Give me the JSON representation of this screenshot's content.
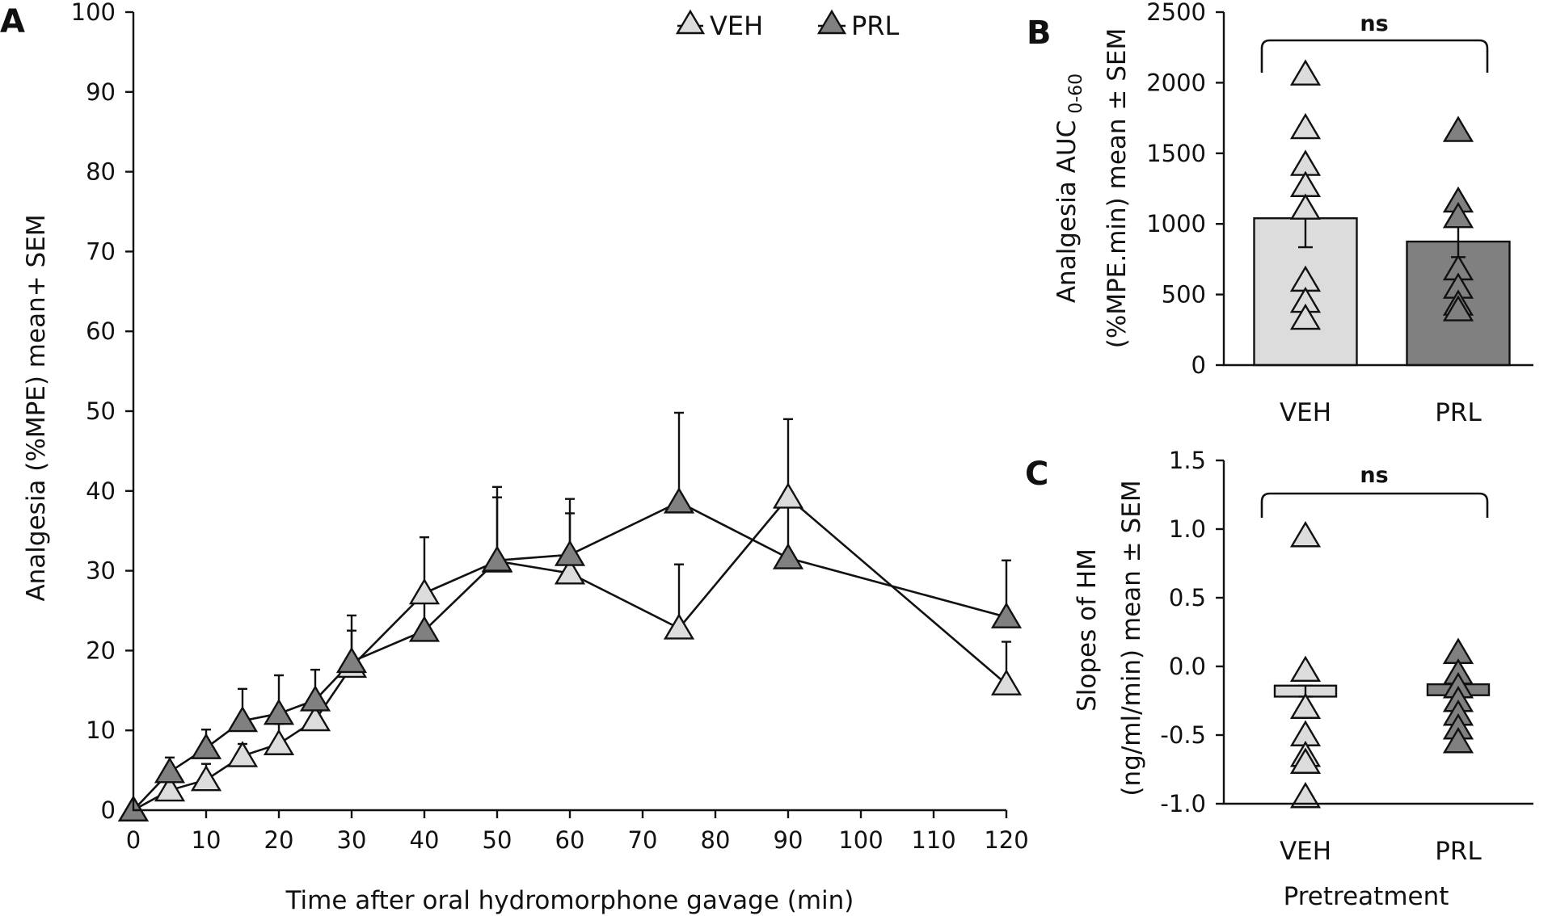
{
  "colors": {
    "veh": "#dcdcdc",
    "prl": "#808080",
    "stroke": "#111111"
  },
  "chart_data": [
    {
      "panel": "A",
      "type": "line",
      "xlabel": "Time after oral hydromorphone gavage (min)",
      "ylabel": "Analgesia (%MPE) mean+ SEM",
      "xlim": [
        0,
        120
      ],
      "ylim": [
        0,
        100
      ],
      "xticks": [
        0,
        10,
        20,
        30,
        40,
        50,
        60,
        70,
        80,
        90,
        100,
        110,
        120
      ],
      "yticks": [
        0,
        10,
        20,
        30,
        40,
        50,
        60,
        70,
        80,
        90,
        100
      ],
      "legend_position": "top",
      "x": [
        0,
        5,
        10,
        15,
        20,
        25,
        30,
        40,
        50,
        60,
        75,
        90,
        120
      ],
      "series": [
        {
          "name": "VEH",
          "values": [
            0,
            2.5,
            3.8,
            6.8,
            8.3,
            11.3,
            18,
            27.2,
            31.2,
            29.7,
            22.8,
            39.2,
            15.8
          ],
          "sem": [
            0,
            1.5,
            2.0,
            1.5,
            2.5,
            2.5,
            4.5,
            7.0,
            8.0,
            7.5,
            8.0,
            9.8,
            5.3
          ]
        },
        {
          "name": "PRL",
          "values": [
            0,
            4.8,
            7.8,
            11.2,
            12.1,
            13.8,
            18.6,
            22.5,
            31.3,
            32,
            38.6,
            31.6,
            24.2
          ],
          "sem": [
            0,
            1.8,
            2.3,
            4.0,
            4.8,
            3.8,
            5.8,
            4.5,
            9.2,
            7.0,
            11.2,
            6.5,
            7.1
          ]
        }
      ]
    },
    {
      "panel": "B",
      "type": "bar",
      "xlabel": "",
      "ylabel_line1": "Analgesia AUC 0-60",
      "ylabel_line2": "(%MPE.min) mean ± SEM",
      "ylabel_main": "Analgesia AUC",
      "ylabel_sub": "0-60",
      "ylim": [
        0,
        2500
      ],
      "yticks": [
        0,
        500,
        1000,
        1500,
        2000,
        2500
      ],
      "categories": [
        "VEH",
        "PRL"
      ],
      "values": [
        1040,
        875
      ],
      "sem": [
        205,
        110
      ],
      "points": [
        [
          2060,
          1680,
          1420,
          1270,
          1110,
          600,
          450,
          330
        ],
        [
          1660,
          1160,
          1050,
          680,
          550,
          430,
          390
        ]
      ],
      "annotation": "ns"
    },
    {
      "panel": "C",
      "type": "bar",
      "xlabel": "Pretreatment",
      "ylabel_line1": "Slopes of HM",
      "ylabel_line2": "(ng/ml/min) mean ± SEM",
      "ylim": [
        -1.0,
        1.5
      ],
      "yticks": [
        -1.0,
        -0.5,
        0.0,
        0.5,
        1.0,
        1.5
      ],
      "ytick_labels": [
        "-1.0",
        "-0.5",
        "0.0",
        "0.5",
        "1.0",
        "1.5"
      ],
      "categories": [
        "VEH",
        "PRL"
      ],
      "values": [
        -0.18,
        -0.17
      ],
      "sem": [
        0.04,
        0.04
      ],
      "points": [
        [
          0.95,
          -0.03,
          -0.3,
          -0.5,
          -0.65,
          -0.7,
          -0.95
        ],
        [
          0.1,
          -0.05,
          -0.15,
          -0.25,
          -0.35,
          -0.45,
          -0.55
        ]
      ],
      "annotation": "ns"
    }
  ]
}
